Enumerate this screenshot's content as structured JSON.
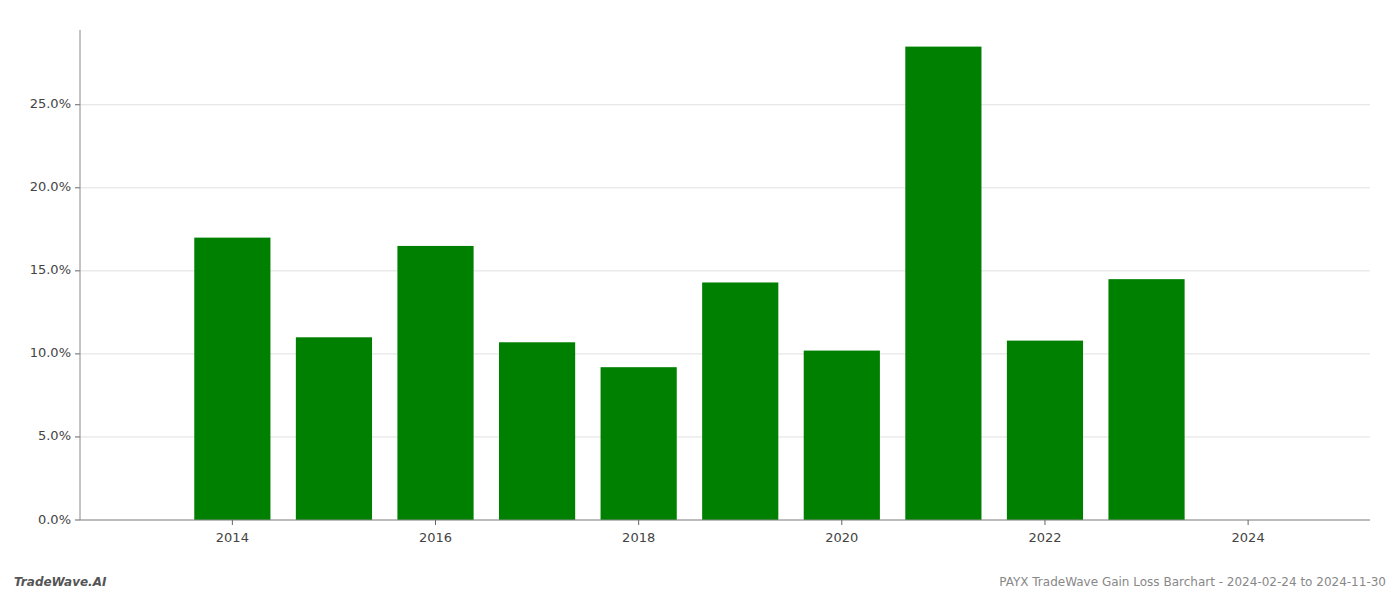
{
  "chart_data": {
    "type": "bar",
    "x": [
      2014,
      2015,
      2016,
      2017,
      2018,
      2019,
      2020,
      2021,
      2022,
      2023
    ],
    "values": [
      0.17,
      0.11,
      0.165,
      0.107,
      0.092,
      0.143,
      0.102,
      0.285,
      0.108,
      0.145
    ],
    "color": "#008000",
    "xlim": [
      2012.5,
      2025.2
    ],
    "xticks": [
      2014,
      2016,
      2018,
      2020,
      2022,
      2024
    ],
    "ylim": [
      0,
      0.295
    ],
    "yticks": [
      {
        "value": 0.0,
        "label": "0.0%"
      },
      {
        "value": 0.05,
        "label": "5.0%"
      },
      {
        "value": 0.1,
        "label": "10.0%"
      },
      {
        "value": 0.15,
        "label": "15.0%"
      },
      {
        "value": 0.2,
        "label": "20.0%"
      },
      {
        "value": 0.25,
        "label": "25.0%"
      }
    ],
    "grid": true,
    "annotations": [
      "TradeWave.AI",
      "PAYX TradeWave Gain Loss Barchart - 2024-02-24 to 2024-11-30"
    ]
  }
}
